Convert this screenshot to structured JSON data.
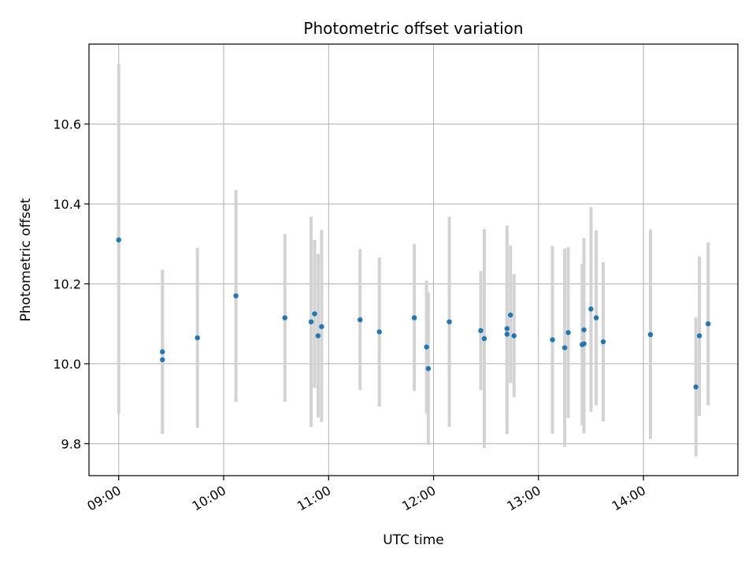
{
  "chart_data": {
    "type": "scatter",
    "title": "Photometric offset variation",
    "xlabel": "UTC time",
    "ylabel": "Photometric offset",
    "grid": true,
    "x_unit": "hours UTC",
    "xlim": [
      "08:43",
      "14:54"
    ],
    "ylim": [
      9.72,
      10.8
    ],
    "x_ticks": [
      "09:00",
      "10:00",
      "11:00",
      "12:00",
      "13:00",
      "14:00"
    ],
    "y_ticks": [
      "9.8",
      "10.0",
      "10.2",
      "10.4",
      "10.6"
    ],
    "colors": {
      "point": "#1f77b4",
      "errorbar": "#d3d3d3",
      "grid": "#b0b0b0"
    },
    "series": [
      {
        "points": [
          {
            "t": "09:00",
            "y": 10.31,
            "lo": 9.875,
            "hi": 10.75
          },
          {
            "t": "09:25",
            "y": 10.03,
            "lo": 9.825,
            "hi": 10.235
          },
          {
            "t": "09:25",
            "y": 10.01,
            "lo": 9.825,
            "hi": 10.235
          },
          {
            "t": "09:45",
            "y": 10.065,
            "lo": 9.84,
            "hi": 10.29
          },
          {
            "t": "10:07",
            "y": 10.17,
            "lo": 9.905,
            "hi": 10.435
          },
          {
            "t": "10:35",
            "y": 10.115,
            "lo": 9.905,
            "hi": 10.325
          },
          {
            "t": "10:50",
            "y": 10.105,
            "lo": 9.842,
            "hi": 10.368
          },
          {
            "t": "10:52",
            "y": 10.125,
            "lo": 9.94,
            "hi": 10.31
          },
          {
            "t": "10:54",
            "y": 10.07,
            "lo": 9.865,
            "hi": 10.275
          },
          {
            "t": "10:56",
            "y": 10.093,
            "lo": 9.854,
            "hi": 10.335
          },
          {
            "t": "11:18",
            "y": 10.11,
            "lo": 9.934,
            "hi": 10.287
          },
          {
            "t": "11:29",
            "y": 10.08,
            "lo": 9.893,
            "hi": 10.266
          },
          {
            "t": "11:49",
            "y": 10.115,
            "lo": 9.932,
            "hi": 10.3
          },
          {
            "t": "11:56",
            "y": 10.042,
            "lo": 9.875,
            "hi": 10.208
          },
          {
            "t": "11:57",
            "y": 9.988,
            "lo": 9.797,
            "hi": 10.178
          },
          {
            "t": "12:09",
            "y": 10.105,
            "lo": 9.842,
            "hi": 10.368
          },
          {
            "t": "12:27",
            "y": 10.083,
            "lo": 9.934,
            "hi": 10.232
          },
          {
            "t": "12:29",
            "y": 10.063,
            "lo": 9.789,
            "hi": 10.337
          },
          {
            "t": "12:42",
            "y": 10.088,
            "lo": 9.86,
            "hi": 10.318
          },
          {
            "t": "12:42",
            "y": 10.074,
            "lo": 9.824,
            "hi": 10.346
          },
          {
            "t": "12:44",
            "y": 10.122,
            "lo": 9.952,
            "hi": 10.296
          },
          {
            "t": "12:46",
            "y": 10.07,
            "lo": 9.916,
            "hi": 10.224
          },
          {
            "t": "13:08",
            "y": 10.06,
            "lo": 9.825,
            "hi": 10.295
          },
          {
            "t": "13:15",
            "y": 10.04,
            "lo": 9.792,
            "hi": 10.288
          },
          {
            "t": "13:17",
            "y": 10.078,
            "lo": 9.864,
            "hi": 10.292
          },
          {
            "t": "13:25",
            "y": 10.048,
            "lo": 9.846,
            "hi": 10.25
          },
          {
            "t": "13:26",
            "y": 10.05,
            "lo": 9.826,
            "hi": 10.272
          },
          {
            "t": "13:26",
            "y": 10.085,
            "lo": 9.854,
            "hi": 10.315
          },
          {
            "t": "13:30",
            "y": 10.137,
            "lo": 9.88,
            "hi": 10.392
          },
          {
            "t": "13:33",
            "y": 10.115,
            "lo": 9.896,
            "hi": 10.334
          },
          {
            "t": "13:37",
            "y": 10.055,
            "lo": 9.856,
            "hi": 10.254
          },
          {
            "t": "14:04",
            "y": 10.073,
            "lo": 9.812,
            "hi": 10.336
          },
          {
            "t": "14:30",
            "y": 9.942,
            "lo": 9.768,
            "hi": 10.116
          },
          {
            "t": "14:32",
            "y": 10.07,
            "lo": 9.87,
            "hi": 10.268
          },
          {
            "t": "14:37",
            "y": 10.1,
            "lo": 9.896,
            "hi": 10.304
          }
        ]
      }
    ]
  }
}
